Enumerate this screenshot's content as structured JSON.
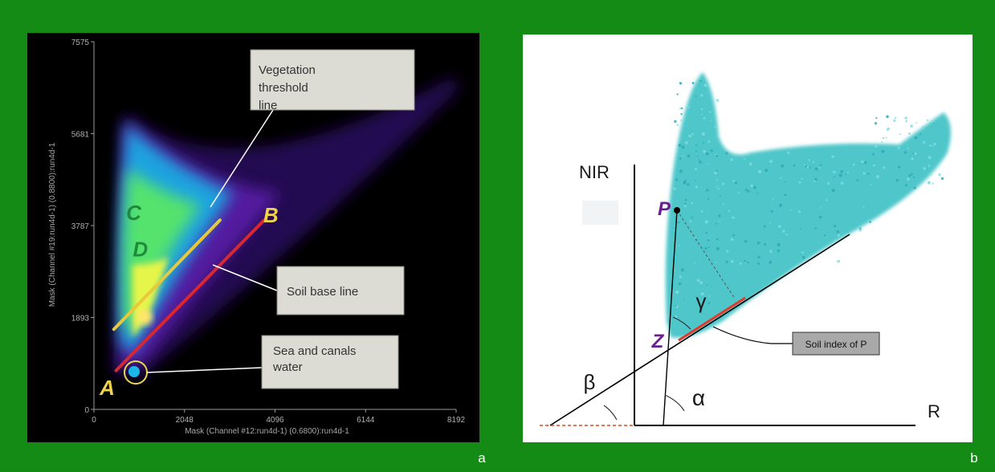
{
  "figure": {
    "panel_a_letter": "a",
    "panel_b_letter": "b"
  },
  "chart_data": [
    {
      "type": "scatter",
      "panel": "a",
      "xlabel": "Mask (Channel #12:run4d-1) (0.6800):run4d-1",
      "ylabel": "Mask (Channel #19:run4d-1) (0.8800):run4d-1",
      "xlim": [
        0,
        8192
      ],
      "ylim": [
        0,
        7575
      ],
      "x_ticks": [
        "0",
        "2048",
        "4096",
        "6144",
        "8192"
      ],
      "y_ticks": [
        "0",
        "1893",
        "3787",
        "5681",
        "7575"
      ],
      "lines": [
        {
          "name": "Vegetation threshold line",
          "color": "#e7c93a",
          "x": [
            450,
            2850
          ],
          "y": [
            1650,
            3900
          ]
        },
        {
          "name": "Soil base line",
          "color": "#d8272e",
          "x": [
            500,
            3850
          ],
          "y": [
            800,
            3900
          ]
        }
      ],
      "point_labels": [
        {
          "text": "A",
          "x": 300,
          "y": 300
        },
        {
          "text": "B",
          "x": 4000,
          "y": 3850
        },
        {
          "text": "C",
          "x": 900,
          "y": 3900
        },
        {
          "text": "D",
          "x": 1050,
          "y": 3150
        }
      ],
      "annotations": [
        {
          "text_lines": [
            "Vegetation",
            "threshold",
            "line"
          ]
        },
        {
          "text_lines": [
            "Soil base line"
          ]
        },
        {
          "text_lines": [
            "Sea and canals",
            "water"
          ]
        }
      ],
      "colors": {
        "background": "#000000",
        "annotation_box": "#dcdcd4",
        "label_yellow": "#f0d34a",
        "label_green": "#1f8a3c"
      }
    },
    {
      "type": "scatter",
      "panel": "b",
      "xlabel": "R",
      "ylabel": "NIR",
      "point_labels": [
        "P",
        "Z"
      ],
      "angle_labels": [
        "α",
        "β",
        "γ"
      ],
      "annotations": [
        {
          "text": "Soil index of P"
        }
      ],
      "colors": {
        "cloud": "#3cbcbc",
        "soil_line": "#000000",
        "soil_index_segment": "#e23b2b",
        "extension": "#d24a1e",
        "point_label": "#6a1f8e",
        "annotation_box": "#a9a9a9"
      }
    }
  ]
}
